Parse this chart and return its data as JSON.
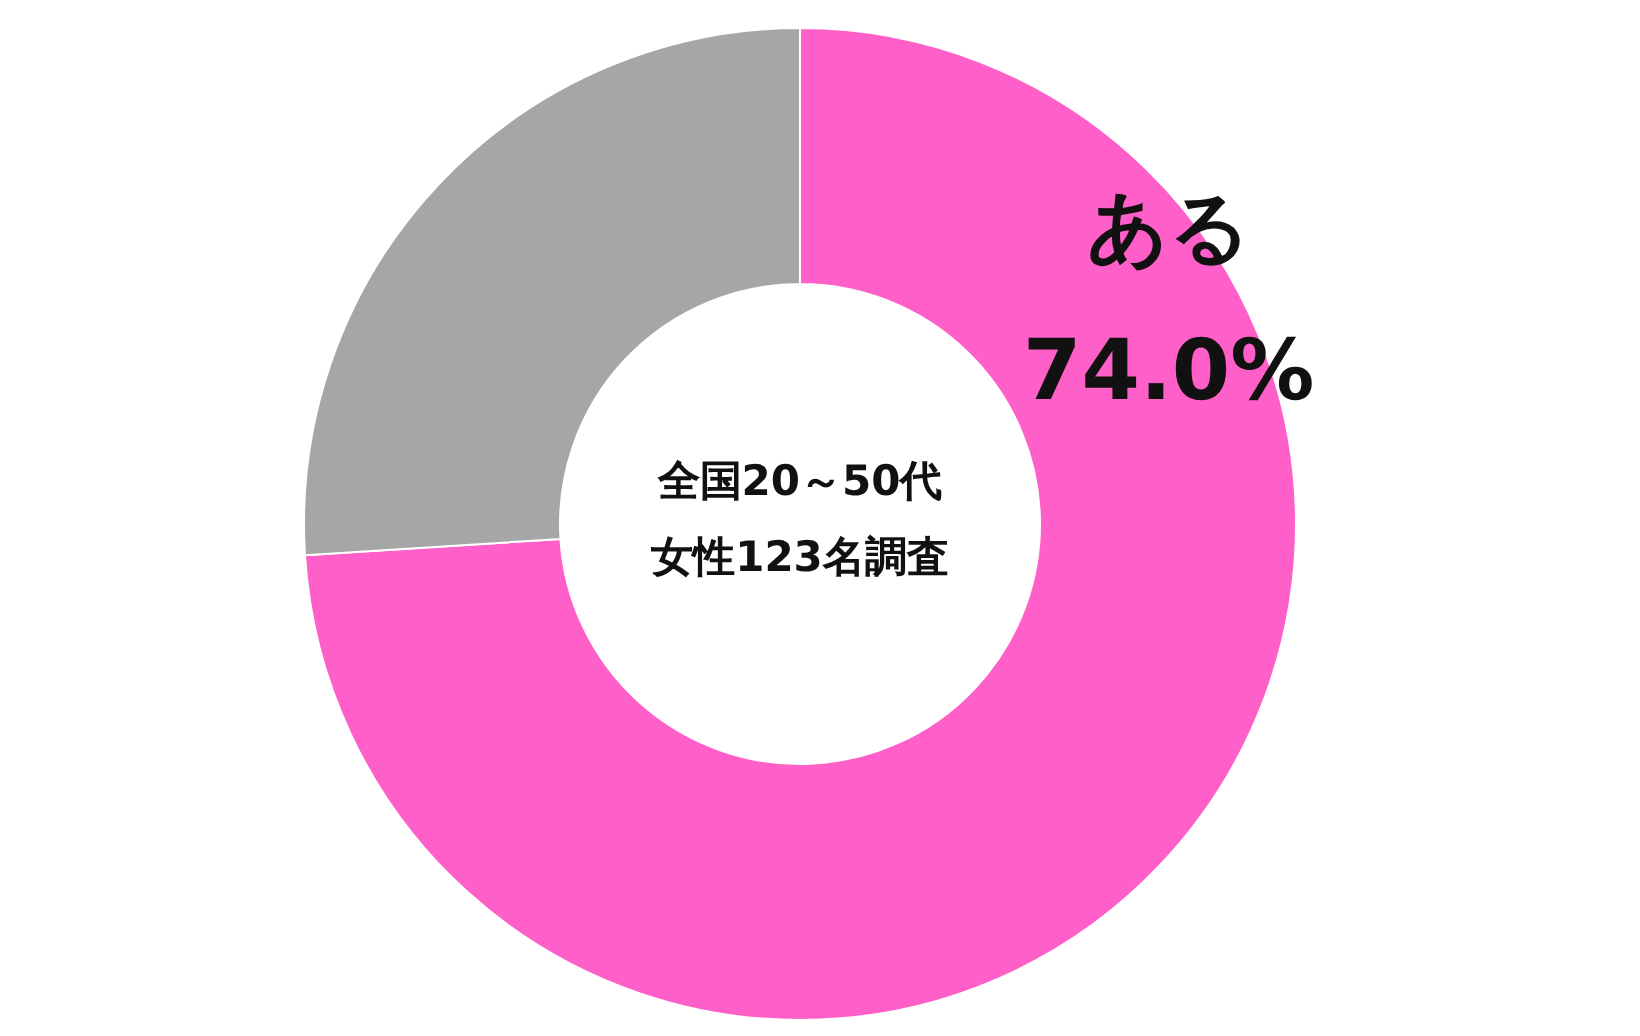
{
  "chart_data": {
    "type": "donut",
    "categories": [
      "ある",
      null
    ],
    "values": [
      74.0,
      26.0
    ],
    "colors": [
      "#ff5fc8",
      "#a6a6a6"
    ],
    "value_labels": [
      "74.0%",
      null
    ],
    "annotations": [
      "全国20～50代",
      "女性123名調査"
    ]
  }
}
